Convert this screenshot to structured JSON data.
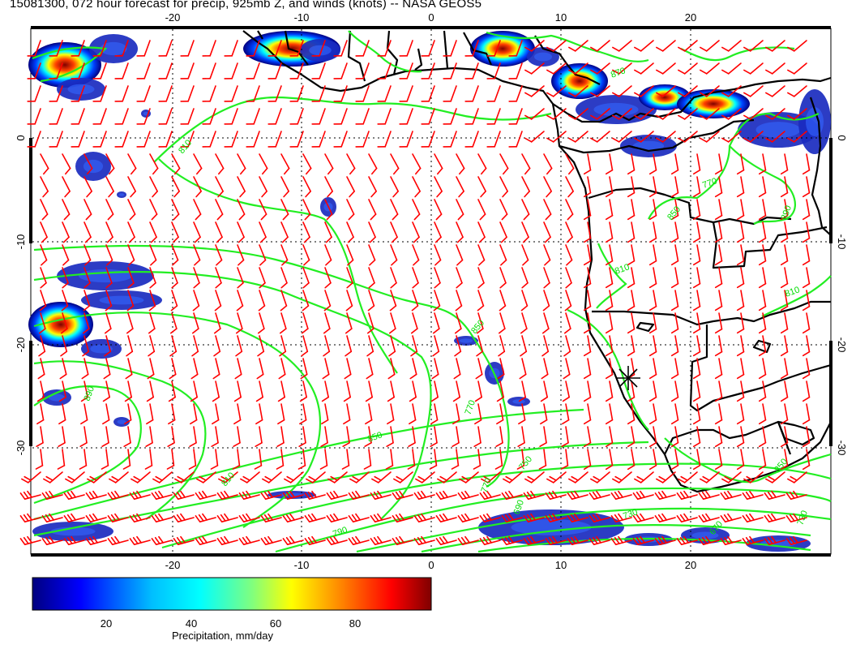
{
  "title": "15081300, 072 hour forecast for precip, 925mb Z, and winds (knots) -- NASA GEOS5",
  "map": {
    "lon_range": [
      -30,
      30
    ],
    "lat_range": [
      -40,
      10
    ],
    "lon_ticks": [
      "-20",
      "-10",
      "0",
      "10",
      "20"
    ],
    "lat_ticks": [
      "0",
      "-10",
      "-20",
      "-30"
    ],
    "gridlines": "dotted",
    "contour_color": "#22ee22",
    "barb_color": "#ff0000",
    "coast_color": "#000000",
    "contour_labels": [
      "810",
      "850",
      "890",
      "850",
      "770",
      "730",
      "810",
      "790",
      "770",
      "750",
      "730",
      "690",
      "670",
      "810",
      "770",
      "850",
      "810",
      "890",
      "850",
      "870"
    ],
    "marker": "location-marker"
  },
  "colorbar": {
    "ticks": [
      "20",
      "40",
      "60",
      "80"
    ],
    "label": "Precipitation, mm/day",
    "colors": [
      "#00007f",
      "#0000ff",
      "#007fff",
      "#00ffff",
      "#7fff7f",
      "#ffff00",
      "#ff7f00",
      "#ff0000",
      "#7f0000"
    ]
  }
}
